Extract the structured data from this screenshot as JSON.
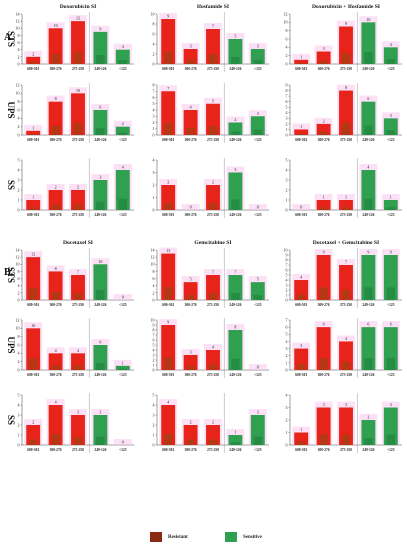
{
  "sections": [
    {
      "label": "A."
    },
    {
      "label": "B."
    }
  ],
  "colors": {
    "resistant": "#e8231a",
    "sensitive": "#2fa04f",
    "overlay": "#8b4a12",
    "highlight": "#f7c6ef"
  },
  "legend": [
    {
      "label": "Resistant",
      "color": "#e8231a"
    },
    {
      "label": "Sensitive",
      "color": "#2fa04f"
    }
  ],
  "chart_data": [
    {
      "type": "bar",
      "section": "A.",
      "title": "Doxorubicin SI",
      "row_label": "STS",
      "categories": [
        "600-301",
        "300-276",
        "275-250",
        "249-126",
        "<125"
      ],
      "values": [
        2,
        10,
        12,
        9,
        4
      ],
      "ylim": [
        0,
        14
      ],
      "ytick_step": 2,
      "colors": [
        "resistant",
        "resistant",
        "resistant",
        "sensitive",
        "sensitive"
      ]
    },
    {
      "type": "bar",
      "section": "A.",
      "title": "Ifosfamide SI",
      "row_label": "",
      "categories": [
        "600-301",
        "300-276",
        "275-250",
        "249-126",
        "<125"
      ],
      "values": [
        9,
        3,
        7,
        5,
        3
      ],
      "ylim": [
        0,
        10
      ],
      "ytick_step": 2,
      "colors": [
        "resistant",
        "resistant",
        "resistant",
        "sensitive",
        "sensitive"
      ]
    },
    {
      "type": "bar",
      "section": "A.",
      "title": "Doxorubicin + Ifosfamide SI",
      "row_label": "",
      "categories": [
        "600-301",
        "300-276",
        "275-250",
        "249-126",
        "<125"
      ],
      "values": [
        1,
        3,
        9,
        10,
        4
      ],
      "ylim": [
        0,
        12
      ],
      "ytick_step": 2,
      "colors": [
        "resistant",
        "resistant",
        "resistant",
        "sensitive",
        "sensitive"
      ]
    },
    {
      "type": "bar",
      "section": "A.",
      "title": "",
      "row_label": "UPS",
      "categories": [
        "600-301",
        "300-276",
        "275-250",
        "249-126",
        "<125"
      ],
      "values": [
        1,
        8,
        10,
        6,
        2
      ],
      "ylim": [
        0,
        12
      ],
      "ytick_step": 2,
      "colors": [
        "resistant",
        "resistant",
        "resistant",
        "sensitive",
        "sensitive"
      ]
    },
    {
      "type": "bar",
      "section": "A.",
      "title": "",
      "row_label": "",
      "categories": [
        "600-301",
        "300-276",
        "275-250",
        "249-126",
        "<125"
      ],
      "values": [
        7,
        4,
        5,
        2,
        3
      ],
      "ylim": [
        0,
        8
      ],
      "ytick_step": 1,
      "colors": [
        "resistant",
        "resistant",
        "resistant",
        "sensitive",
        "sensitive"
      ]
    },
    {
      "type": "bar",
      "section": "A.",
      "title": "",
      "row_label": "",
      "categories": [
        "600-301",
        "300-276",
        "275-250",
        "249-126",
        "<125"
      ],
      "values": [
        1,
        2,
        8,
        6,
        3
      ],
      "ylim": [
        0,
        9
      ],
      "ytick_step": 1,
      "colors": [
        "resistant",
        "resistant",
        "resistant",
        "sensitive",
        "sensitive"
      ]
    },
    {
      "type": "bar",
      "section": "A.",
      "title": "",
      "row_label": "SS",
      "categories": [
        "600-301",
        "300-276",
        "275-250",
        "249-126",
        "<125"
      ],
      "values": [
        1,
        2,
        2,
        3,
        4
      ],
      "ylim": [
        0,
        5
      ],
      "ytick_step": 1,
      "colors": [
        "resistant",
        "resistant",
        "resistant",
        "sensitive",
        "sensitive"
      ]
    },
    {
      "type": "bar",
      "section": "A.",
      "title": "",
      "row_label": "",
      "categories": [
        "600-301",
        "300-276",
        "275-250",
        "249-126",
        "<125"
      ],
      "values": [
        2,
        0,
        2,
        3,
        0
      ],
      "ylim": [
        0,
        4
      ],
      "ytick_step": 1,
      "colors": [
        "resistant",
        "resistant",
        "resistant",
        "sensitive",
        "sensitive"
      ]
    },
    {
      "type": "bar",
      "section": "A.",
      "title": "",
      "row_label": "",
      "categories": [
        "600-301",
        "300-276",
        "275-250",
        "249-126",
        "<125"
      ],
      "values": [
        0,
        1,
        1,
        4,
        1
      ],
      "ylim": [
        0,
        5
      ],
      "ytick_step": 1,
      "colors": [
        "resistant",
        "resistant",
        "resistant",
        "sensitive",
        "sensitive"
      ]
    },
    {
      "type": "bar",
      "section": "B.",
      "title": "Docetaxel SI",
      "row_label": "STS",
      "categories": [
        "600-301",
        "300-276",
        "275-250",
        "249-126",
        "<125"
      ],
      "values": [
        12,
        8,
        7,
        10,
        0
      ],
      "ylim": [
        0,
        14
      ],
      "ytick_step": 2,
      "colors": [
        "resistant",
        "resistant",
        "resistant",
        "sensitive",
        "sensitive"
      ]
    },
    {
      "type": "bar",
      "section": "B.",
      "title": "Gemcitabine SI",
      "row_label": "",
      "categories": [
        "600-301",
        "300-276",
        "275-250",
        "249-126",
        "<125"
      ],
      "values": [
        13,
        5,
        7,
        7,
        5
      ],
      "ylim": [
        0,
        14
      ],
      "ytick_step": 2,
      "colors": [
        "resistant",
        "resistant",
        "resistant",
        "sensitive",
        "sensitive"
      ]
    },
    {
      "type": "bar",
      "section": "B.",
      "title": "Docetaxel + Gemcitabine SI",
      "row_label": "",
      "categories": [
        "600-301",
        "300-276",
        "275-250",
        "249-126",
        "<125"
      ],
      "values": [
        4,
        9,
        7,
        9,
        9
      ],
      "ylim": [
        0,
        10
      ],
      "ytick_step": 1,
      "colors": [
        "resistant",
        "resistant",
        "resistant",
        "sensitive",
        "sensitive"
      ]
    },
    {
      "type": "bar",
      "section": "B.",
      "title": "",
      "row_label": "UPS",
      "categories": [
        "600-301",
        "300-276",
        "275-250",
        "249-126",
        "<125"
      ],
      "values": [
        10,
        4,
        4,
        6,
        1
      ],
      "ylim": [
        0,
        12
      ],
      "ytick_step": 2,
      "colors": [
        "resistant",
        "resistant",
        "resistant",
        "sensitive",
        "sensitive"
      ]
    },
    {
      "type": "bar",
      "section": "B.",
      "title": "",
      "row_label": "",
      "categories": [
        "600-301",
        "300-276",
        "275-250",
        "249-126",
        "<125"
      ],
      "values": [
        9,
        3,
        4,
        8,
        0
      ],
      "ylim": [
        0,
        10
      ],
      "ytick_step": 1,
      "colors": [
        "resistant",
        "resistant",
        "resistant",
        "sensitive",
        "sensitive"
      ]
    },
    {
      "type": "bar",
      "section": "B.",
      "title": "",
      "row_label": "",
      "categories": [
        "600-301",
        "300-276",
        "275-250",
        "249-126",
        "<125"
      ],
      "values": [
        3,
        6,
        4,
        6,
        6
      ],
      "ylim": [
        0,
        7
      ],
      "ytick_step": 1,
      "colors": [
        "resistant",
        "resistant",
        "resistant",
        "sensitive",
        "sensitive"
      ]
    },
    {
      "type": "bar",
      "section": "B.",
      "title": "",
      "row_label": "SS",
      "categories": [
        "600-301",
        "300-276",
        "275-250",
        "249-126",
        "<125"
      ],
      "values": [
        2,
        4,
        3,
        3,
        0
      ],
      "ylim": [
        0,
        5
      ],
      "ytick_step": 1,
      "colors": [
        "resistant",
        "resistant",
        "resistant",
        "sensitive",
        "sensitive"
      ]
    },
    {
      "type": "bar",
      "section": "B.",
      "title": "",
      "row_label": "",
      "categories": [
        "600-301",
        "300-276",
        "275-250",
        "249-126",
        "<125"
      ],
      "values": [
        4,
        2,
        2,
        1,
        3
      ],
      "ylim": [
        0,
        5
      ],
      "ytick_step": 1,
      "colors": [
        "resistant",
        "resistant",
        "resistant",
        "sensitive",
        "sensitive"
      ]
    },
    {
      "type": "bar",
      "section": "B.",
      "title": "",
      "row_label": "",
      "categories": [
        "600-301",
        "300-276",
        "275-250",
        "249-126",
        "<125"
      ],
      "values": [
        1,
        3,
        3,
        2,
        3
      ],
      "ylim": [
        0,
        4
      ],
      "ytick_step": 1,
      "colors": [
        "resistant",
        "resistant",
        "resistant",
        "sensitive",
        "sensitive"
      ]
    }
  ]
}
